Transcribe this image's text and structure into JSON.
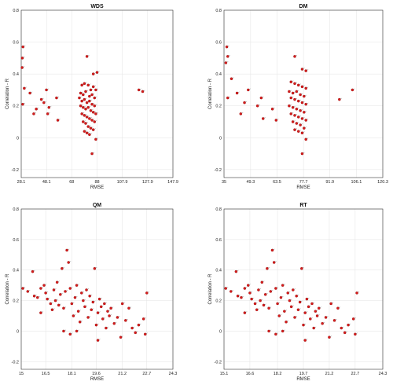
{
  "chart_data": [
    {
      "type": "scatter",
      "title": "WDS",
      "xlabel": "RMSE",
      "ylabel": "Correlation - R",
      "xlim": [
        28.1,
        147.9
      ],
      "ylim": [
        -0.25,
        0.8
      ],
      "xticks": [
        "28.1",
        "48.1",
        "68",
        "88",
        "107.9",
        "127.9",
        "147.9"
      ],
      "xtick_values": [
        28.1,
        48.1,
        68,
        88,
        107.9,
        127.9,
        147.9
      ],
      "yticks": [
        "-0.2",
        "0",
        "0.2",
        "0.4",
        "0.6",
        "0.8"
      ],
      "ytick_values": [
        -0.2,
        0,
        0.2,
        0.4,
        0.6,
        0.8
      ],
      "grid": true,
      "points": [
        [
          29.5,
          0.57
        ],
        [
          29,
          0.5
        ],
        [
          28.8,
          0.44
        ],
        [
          30.5,
          0.31
        ],
        [
          29.3,
          0.21
        ],
        [
          35,
          0.28
        ],
        [
          38,
          0.15
        ],
        [
          40,
          0.18
        ],
        [
          44,
          0.24
        ],
        [
          46,
          0.22
        ],
        [
          48,
          0.3
        ],
        [
          50,
          0.19
        ],
        [
          49,
          0.15
        ],
        [
          56,
          0.25
        ],
        [
          57,
          0.11
        ],
        [
          80,
          0.51
        ],
        [
          85,
          0.4
        ],
        [
          88,
          0.41
        ],
        [
          76,
          0.33
        ],
        [
          78,
          0.34
        ],
        [
          81,
          0.33
        ],
        [
          83,
          0.3
        ],
        [
          85,
          0.32
        ],
        [
          87,
          0.3
        ],
        [
          75,
          0.28
        ],
        [
          77,
          0.27
        ],
        [
          79,
          0.29
        ],
        [
          82,
          0.26
        ],
        [
          84,
          0.27
        ],
        [
          86,
          0.25
        ],
        [
          74,
          0.25
        ],
        [
          76,
          0.23
        ],
        [
          78,
          0.24
        ],
        [
          80,
          0.22
        ],
        [
          82,
          0.23
        ],
        [
          84,
          0.21
        ],
        [
          86,
          0.2
        ],
        [
          75,
          0.2
        ],
        [
          77,
          0.19
        ],
        [
          79,
          0.18
        ],
        [
          81,
          0.19
        ],
        [
          83,
          0.17
        ],
        [
          85,
          0.16
        ],
        [
          87,
          0.15
        ],
        [
          76,
          0.15
        ],
        [
          78,
          0.14
        ],
        [
          80,
          0.13
        ],
        [
          82,
          0.12
        ],
        [
          84,
          0.11
        ],
        [
          86,
          0.1
        ],
        [
          77,
          0.1
        ],
        [
          79,
          0.09
        ],
        [
          81,
          0.07
        ],
        [
          83,
          0.06
        ],
        [
          85,
          0.05
        ],
        [
          78,
          0.04
        ],
        [
          80,
          0.03
        ],
        [
          82,
          0.02
        ],
        [
          87,
          -0.01
        ],
        [
          84,
          -0.1
        ],
        [
          121,
          0.3
        ],
        [
          124,
          0.29
        ]
      ]
    },
    {
      "type": "scatter",
      "title": "DM",
      "xlabel": "RMSE",
      "ylabel": "Correlation - R",
      "xlim": [
        35,
        120.3
      ],
      "ylim": [
        -0.25,
        0.8
      ],
      "xticks": [
        "35",
        "49.3",
        "63.5",
        "77.7",
        "91.9",
        "106.1",
        "120.3"
      ],
      "xtick_values": [
        35,
        49.3,
        63.5,
        77.7,
        91.9,
        106.1,
        120.3
      ],
      "yticks": [
        "-0.2",
        "0",
        "0.2",
        "0.4",
        "0.6",
        "0.8"
      ],
      "ytick_values": [
        -0.2,
        0,
        0.2,
        0.4,
        0.6,
        0.8
      ],
      "grid": true,
      "points": [
        [
          36.5,
          0.57
        ],
        [
          37,
          0.51
        ],
        [
          36,
          0.47
        ],
        [
          39,
          0.37
        ],
        [
          37,
          0.25
        ],
        [
          42,
          0.28
        ],
        [
          44,
          0.15
        ],
        [
          46,
          0.22
        ],
        [
          48,
          0.3
        ],
        [
          53,
          0.2
        ],
        [
          55,
          0.25
        ],
        [
          56,
          0.12
        ],
        [
          61,
          0.18
        ],
        [
          63,
          0.11
        ],
        [
          73,
          0.51
        ],
        [
          77,
          0.43
        ],
        [
          79,
          0.42
        ],
        [
          71,
          0.35
        ],
        [
          73,
          0.34
        ],
        [
          75,
          0.33
        ],
        [
          77,
          0.32
        ],
        [
          79,
          0.31
        ],
        [
          70,
          0.29
        ],
        [
          72,
          0.28
        ],
        [
          74,
          0.29
        ],
        [
          76,
          0.27
        ],
        [
          78,
          0.26
        ],
        [
          71,
          0.25
        ],
        [
          73,
          0.24
        ],
        [
          75,
          0.23
        ],
        [
          77,
          0.22
        ],
        [
          79,
          0.21
        ],
        [
          70,
          0.2
        ],
        [
          72,
          0.19
        ],
        [
          74,
          0.18
        ],
        [
          76,
          0.17
        ],
        [
          78,
          0.16
        ],
        [
          71,
          0.15
        ],
        [
          73,
          0.14
        ],
        [
          75,
          0.13
        ],
        [
          77,
          0.12
        ],
        [
          79,
          0.11
        ],
        [
          72,
          0.1
        ],
        [
          74,
          0.09
        ],
        [
          76,
          0.08
        ],
        [
          78,
          0.06
        ],
        [
          73,
          0.05
        ],
        [
          75,
          0.04
        ],
        [
          77,
          0.03
        ],
        [
          79,
          -0.01
        ],
        [
          77,
          -0.1
        ],
        [
          97,
          0.24
        ],
        [
          104,
          0.3
        ]
      ]
    },
    {
      "type": "scatter",
      "title": "QM",
      "xlabel": "RMSE",
      "ylabel": "Correlation - R",
      "xlim": [
        15,
        24.3
      ],
      "ylim": [
        -0.25,
        0.8
      ],
      "xticks": [
        "15",
        "16.5",
        "18.1",
        "19.6",
        "21.2",
        "22.7",
        "24.3"
      ],
      "xtick_values": [
        15,
        16.5,
        18.1,
        19.6,
        21.2,
        22.7,
        24.3
      ],
      "yticks": [
        "-0.2",
        "0",
        "0.2",
        "0.4",
        "0.6",
        "0.8"
      ],
      "ytick_values": [
        -0.2,
        0,
        0.2,
        0.4,
        0.6,
        0.8
      ],
      "grid": true,
      "points": [
        [
          15.1,
          0.28
        ],
        [
          15.4,
          0.26
        ],
        [
          15.7,
          0.39
        ],
        [
          15.8,
          0.23
        ],
        [
          16.0,
          0.22
        ],
        [
          16.2,
          0.28
        ],
        [
          16.4,
          0.3
        ],
        [
          16.5,
          0.25
        ],
        [
          16.6,
          0.21
        ],
        [
          16.8,
          0.18
        ],
        [
          16.9,
          0.14
        ],
        [
          16.2,
          0.12
        ],
        [
          17.0,
          0.27
        ],
        [
          17.1,
          0.2
        ],
        [
          17.2,
          0.32
        ],
        [
          17.3,
          0.17
        ],
        [
          17.4,
          0.24
        ],
        [
          17.5,
          0.41
        ],
        [
          17.6,
          0.15
        ],
        [
          17.7,
          0.26
        ],
        [
          17.8,
          0.53
        ],
        [
          17.9,
          0.45
        ],
        [
          18.0,
          0.28
        ],
        [
          18.1,
          0.18
        ],
        [
          18.2,
          0.1
        ],
        [
          18.3,
          0.22
        ],
        [
          18.4,
          0.3
        ],
        [
          18.5,
          0.13
        ],
        [
          18.6,
          0.06
        ],
        [
          18.7,
          0.25
        ],
        [
          18.8,
          0.2
        ],
        [
          18.9,
          0.16
        ],
        [
          19.0,
          0.27
        ],
        [
          19.1,
          0.09
        ],
        [
          19.2,
          0.23
        ],
        [
          19.3,
          0.14
        ],
        [
          19.4,
          0.19
        ],
        [
          19.5,
          0.41
        ],
        [
          19.6,
          0.04
        ],
        [
          19.7,
          0.12
        ],
        [
          19.8,
          0.21
        ],
        [
          19.9,
          0.16
        ],
        [
          20.0,
          0.08
        ],
        [
          20.1,
          0.18
        ],
        [
          20.2,
          0.02
        ],
        [
          20.3,
          0.13
        ],
        [
          20.4,
          0.1
        ],
        [
          20.5,
          0.15
        ],
        [
          20.7,
          0.05
        ],
        [
          20.9,
          0.09
        ],
        [
          21.1,
          -0.04
        ],
        [
          21.2,
          0.18
        ],
        [
          21.4,
          0.07
        ],
        [
          21.6,
          0.15
        ],
        [
          21.8,
          0.02
        ],
        [
          22.0,
          -0.01
        ],
        [
          22.2,
          0.04
        ],
        [
          22.5,
          0.08
        ],
        [
          22.6,
          -0.02
        ],
        [
          22.7,
          0.25
        ],
        [
          17.6,
          0.0
        ],
        [
          18.4,
          0.0
        ],
        [
          19.7,
          -0.06
        ],
        [
          18.0,
          -0.02
        ]
      ]
    },
    {
      "type": "scatter",
      "title": "RT",
      "xlabel": "RMSE",
      "ylabel": "Correlation - R",
      "xlim": [
        15.1,
        24.3
      ],
      "ylim": [
        -0.25,
        0.8
      ],
      "xticks": [
        "15.1",
        "16.6",
        "18.2",
        "19.7",
        "21.2",
        "22.7",
        "24.3"
      ],
      "xtick_values": [
        15.1,
        16.6,
        18.2,
        19.7,
        21.2,
        22.7,
        24.3
      ],
      "yticks": [
        "-0.2",
        "0",
        "0.2",
        "0.4",
        "0.6",
        "0.8"
      ],
      "ytick_values": [
        -0.2,
        0,
        0.2,
        0.4,
        0.6,
        0.8
      ],
      "grid": true,
      "points": [
        [
          15.2,
          0.28
        ],
        [
          15.5,
          0.26
        ],
        [
          15.8,
          0.39
        ],
        [
          15.9,
          0.23
        ],
        [
          16.1,
          0.22
        ],
        [
          16.3,
          0.28
        ],
        [
          16.5,
          0.3
        ],
        [
          16.6,
          0.25
        ],
        [
          16.7,
          0.21
        ],
        [
          16.9,
          0.18
        ],
        [
          17.0,
          0.14
        ],
        [
          16.3,
          0.12
        ],
        [
          17.1,
          0.27
        ],
        [
          17.2,
          0.2
        ],
        [
          17.3,
          0.32
        ],
        [
          17.4,
          0.17
        ],
        [
          17.5,
          0.24
        ],
        [
          17.6,
          0.41
        ],
        [
          17.7,
          0.15
        ],
        [
          17.8,
          0.26
        ],
        [
          17.9,
          0.53
        ],
        [
          18.0,
          0.45
        ],
        [
          18.1,
          0.28
        ],
        [
          18.2,
          0.18
        ],
        [
          18.3,
          0.1
        ],
        [
          18.4,
          0.22
        ],
        [
          18.5,
          0.3
        ],
        [
          18.6,
          0.13
        ],
        [
          18.7,
          0.06
        ],
        [
          18.8,
          0.25
        ],
        [
          18.9,
          0.2
        ],
        [
          19.0,
          0.16
        ],
        [
          19.1,
          0.27
        ],
        [
          19.2,
          0.09
        ],
        [
          19.3,
          0.23
        ],
        [
          19.4,
          0.14
        ],
        [
          19.5,
          0.19
        ],
        [
          19.6,
          0.41
        ],
        [
          19.7,
          0.04
        ],
        [
          19.8,
          0.12
        ],
        [
          19.9,
          0.21
        ],
        [
          20.0,
          0.16
        ],
        [
          20.1,
          0.08
        ],
        [
          20.2,
          0.18
        ],
        [
          20.3,
          0.02
        ],
        [
          20.4,
          0.13
        ],
        [
          20.5,
          0.1
        ],
        [
          20.6,
          0.15
        ],
        [
          20.8,
          0.05
        ],
        [
          21.0,
          0.09
        ],
        [
          21.2,
          -0.04
        ],
        [
          21.3,
          0.18
        ],
        [
          21.5,
          0.07
        ],
        [
          21.7,
          0.15
        ],
        [
          21.9,
          0.02
        ],
        [
          22.1,
          -0.01
        ],
        [
          22.3,
          0.04
        ],
        [
          22.6,
          0.08
        ],
        [
          22.7,
          -0.02
        ],
        [
          22.8,
          0.25
        ],
        [
          17.7,
          0.0
        ],
        [
          18.5,
          0.0
        ],
        [
          19.8,
          -0.06
        ],
        [
          18.1,
          -0.02
        ]
      ]
    }
  ]
}
